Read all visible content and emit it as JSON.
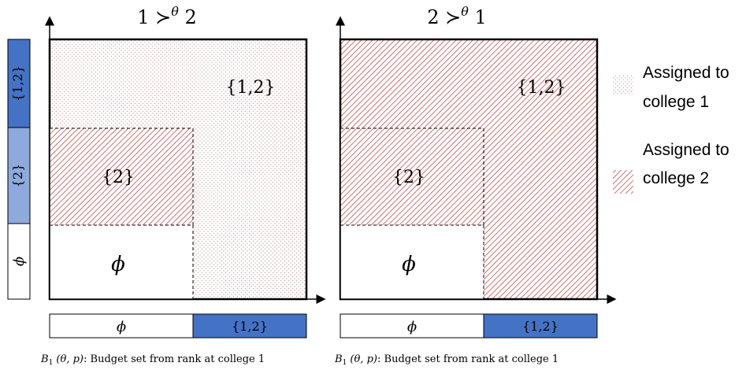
{
  "colors": {
    "dark_blue": "#4472C4",
    "light_blue": "#8EA9DB",
    "hatch_red": "#C0504D",
    "dot_color": "#C9A6A6",
    "black": "#000000"
  },
  "panels": {
    "left": {
      "title": "1 ≻",
      "title_sup": "θ",
      "title_end": " 2",
      "region_12_label": "{1,2}",
      "region_2_label": "{2}",
      "region_empty_label": "ϕ",
      "bar_left_label": "ϕ",
      "bar_right_label": "{1,2}",
      "caption_math": "B",
      "caption_sub": "1",
      "caption_args": " (θ, p)",
      "caption_text": ": Budget set from rank at college 1"
    },
    "right": {
      "title": "2 ≻",
      "title_sup": "θ",
      "title_end": " 1",
      "region_12_label": "{1,2}",
      "region_2_label": "{2}",
      "region_empty_label": "ϕ",
      "bar_left_label": "ϕ",
      "bar_right_label": "{1,2}",
      "caption_math": "B",
      "caption_sub": "1",
      "caption_args": " (θ, p)",
      "caption_text": ": Budget set from rank at college 1"
    }
  },
  "vertical_bar": {
    "top_label": "{1,2}",
    "middle_label": "{2}",
    "bottom_label": "ϕ"
  },
  "legend": {
    "dotted_line1": "Assigned to",
    "dotted_line2": "college 1",
    "hatched_line1": "Assigned to",
    "hatched_line2": "college 2"
  }
}
